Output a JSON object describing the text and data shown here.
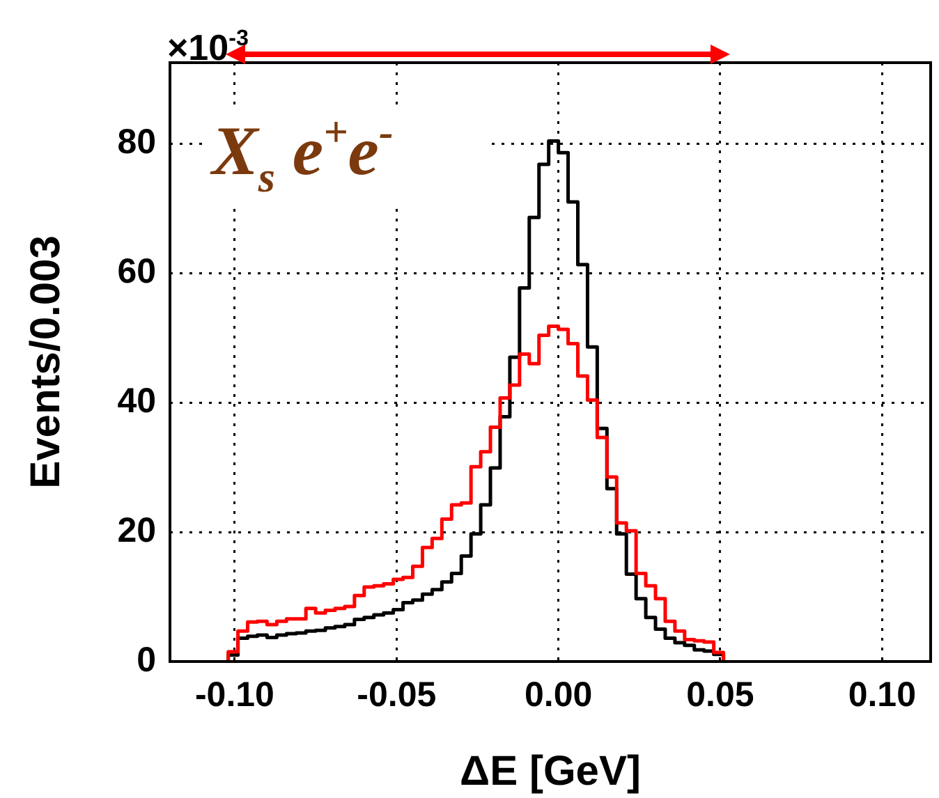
{
  "chart_data": {
    "type": "histogram",
    "bins": [
      -0.102,
      -0.099,
      -0.096,
      -0.093,
      -0.09,
      -0.087,
      -0.084,
      -0.081,
      -0.078,
      -0.075,
      -0.072,
      -0.069,
      -0.066,
      -0.063,
      -0.06,
      -0.057,
      -0.054,
      -0.051,
      -0.048,
      -0.045,
      -0.042,
      -0.039,
      -0.036,
      -0.033,
      -0.03,
      -0.027,
      -0.024,
      -0.021,
      -0.018,
      -0.015,
      -0.012,
      -0.009,
      -0.006,
      -0.003,
      0,
      0.003,
      0.006,
      0.009,
      0.012,
      0.015,
      0.018,
      0.021,
      0.024,
      0.027,
      0.03,
      0.033,
      0.036,
      0.039,
      0.042,
      0.045,
      0.048,
      0.051
    ],
    "series": [
      {
        "color": "#ff0000",
        "values": [
          1.5,
          4.7,
          6.1,
          6.2,
          5.7,
          6.2,
          6.6,
          6.6,
          8.2,
          7.5,
          7.9,
          8.2,
          8.5,
          10.2,
          11.5,
          11.7,
          12.0,
          12.7,
          13.0,
          14.7,
          17.6,
          19.0,
          22.0,
          24.2,
          24.5,
          30.1,
          32.4,
          36.2,
          40.7,
          42.7,
          47.5,
          46.0,
          50.4,
          51.8,
          51.3,
          49.1,
          44.1,
          40.4,
          34.6,
          28.5,
          21.4,
          20.2,
          13.6,
          11.7,
          9.7,
          6.2,
          4.7,
          3.4,
          3.2,
          3.0,
          1.4
        ]
      },
      {
        "color": "#000000",
        "values": [
          1.0,
          3.6,
          3.9,
          4.1,
          3.7,
          4.1,
          4.3,
          4.4,
          4.7,
          4.8,
          5.2,
          5.4,
          5.7,
          6.5,
          6.8,
          7.2,
          7.5,
          8.0,
          9.1,
          9.5,
          10.4,
          11.1,
          12.3,
          13.6,
          16.3,
          19.7,
          24.2,
          29.9,
          37.8,
          47.0,
          57.7,
          68.6,
          76.8,
          80.4,
          78.6,
          71.0,
          61.3,
          48.6,
          36.0,
          26.7,
          19.7,
          13.5,
          9.7,
          6.8,
          5.0,
          3.6,
          2.9,
          2.5,
          1.8,
          1.6,
          1.1
        ]
      }
    ],
    "xlabel": "ΔE [GeV]",
    "ylabel": "Events/0.003",
    "xlim": [
      -0.12,
      0.115
    ],
    "ylim": [
      0,
      92.5
    ],
    "xticks": [
      {
        "value": -0.1,
        "label": "-0.10"
      },
      {
        "value": -0.05,
        "label": "-0.05"
      },
      {
        "value": 0,
        "label": "0.00"
      },
      {
        "value": 0.05,
        "label": "0.05"
      },
      {
        "value": 0.1,
        "label": "0.10"
      }
    ],
    "yticks": [
      0,
      20,
      40,
      60,
      80
    ],
    "grid": true,
    "legend": false,
    "annotations": [
      "×10$^{-3}$",
      "X$_{s}$ e$^{+}$e$^{-}$"
    ]
  }
}
